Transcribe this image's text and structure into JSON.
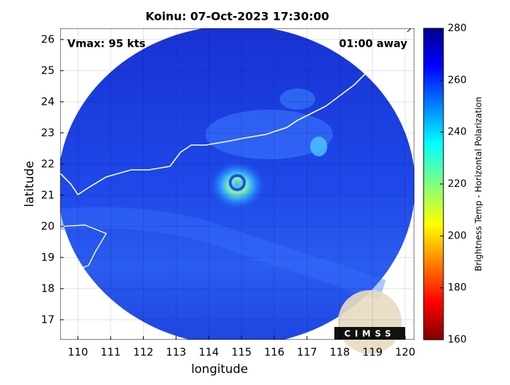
{
  "title": "Koinu: 07-Oct-2023 17:30:00",
  "annotations": {
    "vmax": "Vmax: 95 kts",
    "time_away": "01:00 away"
  },
  "x_axis": {
    "label": "longitude",
    "lim": [
      109.46,
      120.28
    ],
    "ticks": [
      110,
      111,
      112,
      113,
      114,
      115,
      116,
      117,
      118,
      119,
      120
    ]
  },
  "y_axis": {
    "label": "latitude",
    "lim": [
      16.36,
      26.36
    ],
    "ticks": [
      17,
      18,
      19,
      20,
      21,
      22,
      23,
      24,
      25,
      26
    ]
  },
  "colorbar": {
    "label": "Brightness Temp - Horizontal Polarization",
    "lim": [
      160,
      280
    ],
    "ticks": [
      160,
      180,
      200,
      220,
      240,
      260,
      280
    ]
  },
  "logo": "CIMSS"
}
